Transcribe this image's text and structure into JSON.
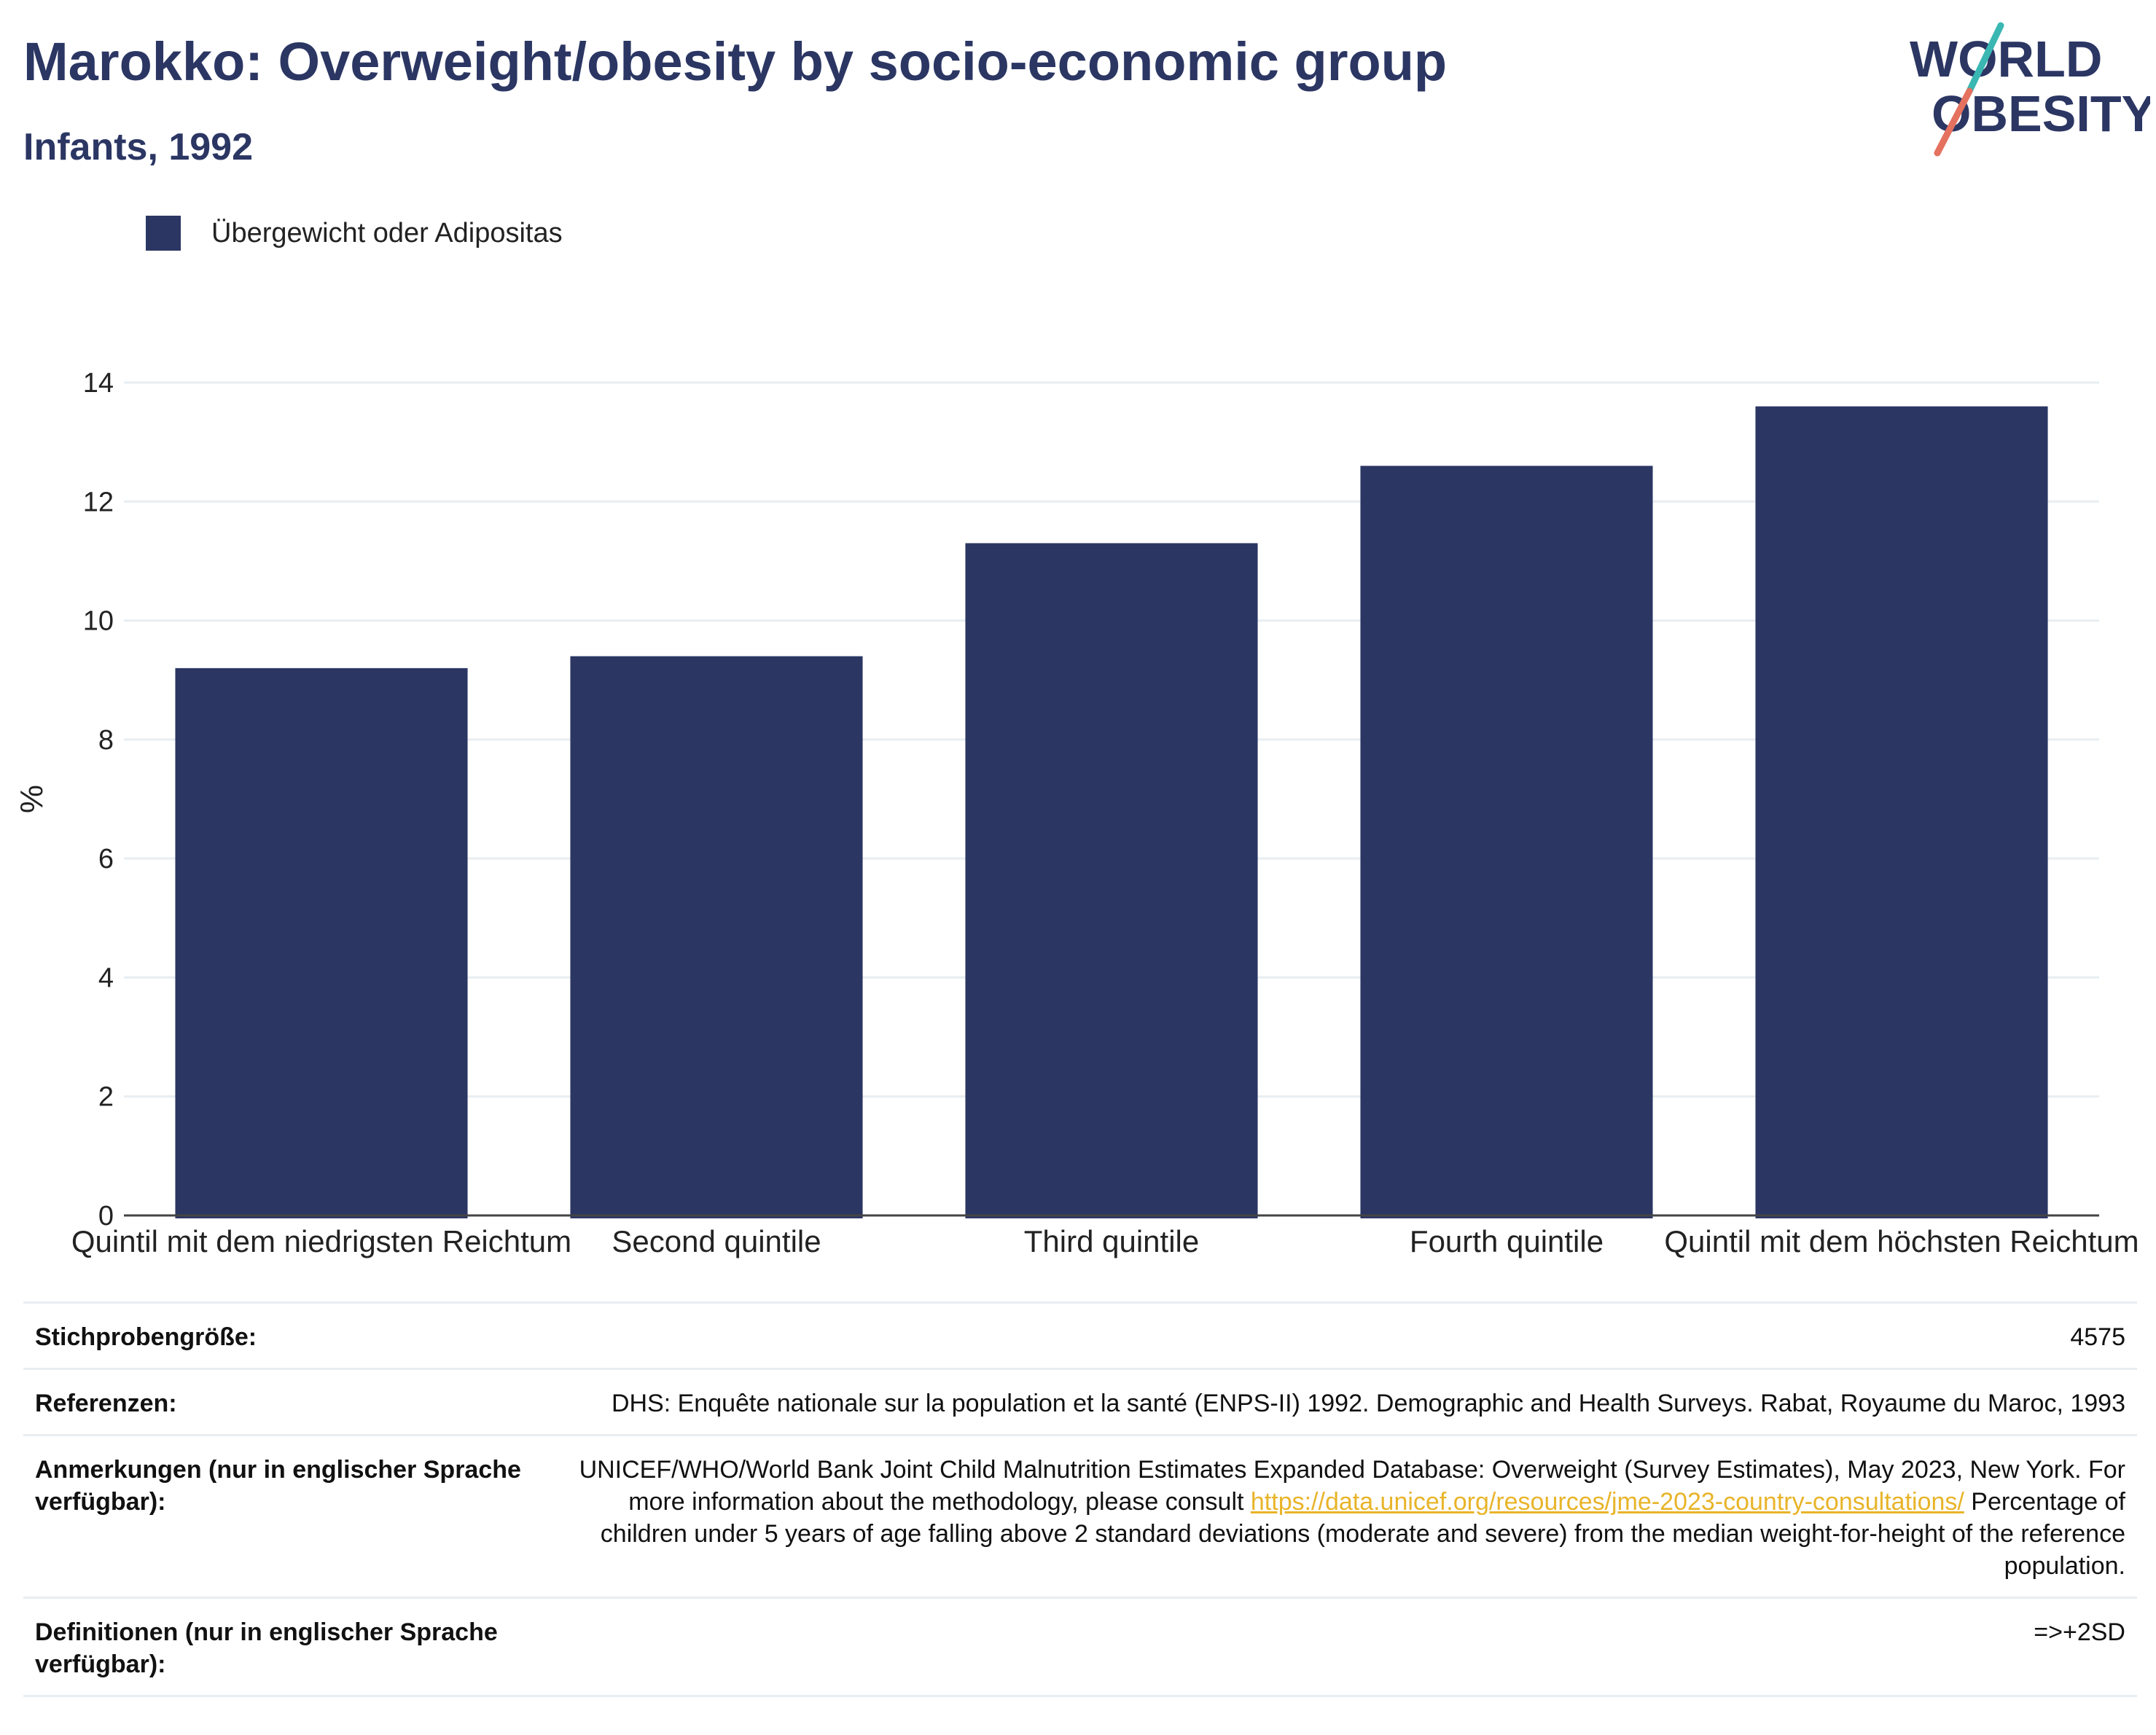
{
  "header": {
    "title": "Marokko: Overweight/obesity by socio-economic group",
    "subtitle": "Infants, 1992"
  },
  "logo": {
    "line1": "WORLD",
    "line2": "OBESITY"
  },
  "colors": {
    "bar": "#2b3663",
    "text": "#2b3663",
    "grid": "#e8eef2",
    "link": "#e8b429",
    "logo_slash_top": "#3ab7b2",
    "logo_slash_bottom": "#e5715f"
  },
  "legend": {
    "label": "Übergewicht oder Adipositas"
  },
  "chart_data": {
    "type": "bar",
    "categories": [
      "Quintil mit dem niedrigsten Reichtum",
      "Second quintile",
      "Third quintile",
      "Fourth quintile",
      "Quintil mit dem höchsten Reichtum"
    ],
    "series": [
      {
        "name": "Übergewicht oder Adipositas",
        "values": [
          9.2,
          9.4,
          11.3,
          12.6,
          13.6
        ]
      }
    ],
    "ylabel": "%",
    "ylim": [
      0,
      14
    ],
    "yticks": [
      0,
      2,
      4,
      6,
      8,
      10,
      12,
      14
    ],
    "grid": true,
    "legend_position": "top-left"
  },
  "info": [
    {
      "key": "Stichprobengröße:",
      "value": "4575"
    },
    {
      "key": "Referenzen:",
      "value": "DHS: Enquête nationale sur la population et la santé (ENPS-II) 1992. Demographic and Health Surveys. Rabat, Royaume du Maroc, 1993"
    },
    {
      "key": "Anmerkungen (nur in englischer Sprache verfügbar):",
      "value_before": "UNICEF/WHO/World Bank Joint Child Malnutrition Estimates Expanded Database: Overweight (Survey Estimates), May 2023, New York. For more information about the methodology, please consult ",
      "link": "https://data.unicef.org/resources/jme-2023-country-consultations/",
      "value_after": " Percentage of children under 5 years of age falling above 2 standard deviations (moderate and severe) from the median weight-for-height of the reference population."
    },
    {
      "key": "Definitionen (nur in englischer Sprache verfügbar):",
      "value": "=>+2SD"
    }
  ]
}
